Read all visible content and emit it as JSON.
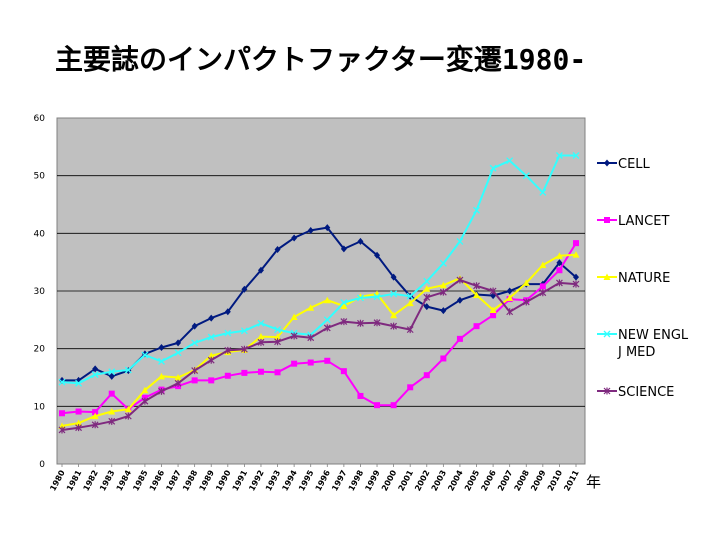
{
  "title_main": "主要誌のインパクトファクター変遷",
  "title_year": "1980-",
  "chart_data": {
    "type": "line",
    "title": "主要誌のインパクトファクター変遷1980-",
    "xlabel": "年",
    "ylabel": "",
    "ylim": [
      0,
      60
    ],
    "yticks": [
      "0",
      "10",
      "20",
      "30",
      "40",
      "50",
      "60"
    ],
    "grid": true,
    "legend": "right",
    "categories": [
      "1980",
      "1981",
      "1982",
      "1983",
      "1984",
      "1985",
      "1986",
      "1987",
      "1988",
      "1989",
      "1990",
      "1991",
      "1992",
      "1993",
      "1994",
      "1995",
      "1996",
      "1997",
      "1998",
      "1999",
      "2000",
      "2001",
      "2002",
      "2003",
      "2004",
      "2005",
      "2006",
      "2007",
      "2008",
      "2009",
      "2010",
      "2011"
    ],
    "series": [
      {
        "name": "CELL",
        "color": "#001a80",
        "marker": "diamond",
        "values": [
          14.5,
          14.5,
          16.5,
          15.2,
          16.2,
          19.1,
          20.2,
          21.0,
          23.9,
          25.3,
          26.4,
          30.3,
          33.6,
          37.2,
          39.2,
          40.5,
          41.0,
          37.3,
          38.6,
          36.2,
          32.4,
          29.1,
          27.3,
          26.6,
          28.4,
          29.4,
          29.2,
          30.0,
          31.2,
          31.2,
          34.9,
          32.4
        ]
      },
      {
        "name": "LANCET",
        "color": "#ff00ff",
        "marker": "square",
        "values": [
          8.8,
          9.1,
          9.0,
          12.2,
          9.5,
          11.5,
          12.9,
          13.5,
          14.5,
          14.5,
          15.3,
          15.8,
          16.0,
          15.9,
          17.4,
          17.6,
          17.9,
          16.1,
          11.8,
          10.2,
          10.2,
          13.3,
          15.4,
          18.3,
          21.7,
          23.9,
          25.8,
          28.6,
          28.4,
          30.8,
          33.6,
          38.3
        ]
      },
      {
        "name": "NATURE",
        "color": "#ffff00",
        "marker": "triangle",
        "values": [
          6.6,
          7.1,
          8.3,
          9.1,
          9.5,
          12.8,
          15.2,
          15.0,
          16.3,
          18.8,
          19.4,
          19.8,
          22.1,
          22.0,
          25.5,
          27.1,
          28.4,
          27.4,
          29.0,
          29.5,
          25.8,
          27.9,
          30.4,
          31.0,
          32.2,
          29.3,
          26.7,
          28.8,
          31.4,
          34.5,
          36.1,
          36.3
        ]
      },
      {
        "name": "NEW ENGL J MED",
        "color": "#33ffff",
        "marker": "x",
        "values": [
          14.2,
          14.0,
          15.5,
          16.0,
          16.3,
          18.9,
          17.8,
          19.3,
          21.0,
          22.0,
          22.7,
          23.1,
          24.4,
          23.3,
          22.7,
          22.4,
          25.0,
          28.0,
          28.8,
          29.0,
          29.5,
          29.1,
          31.7,
          34.8,
          38.6,
          44.0,
          51.3,
          52.6,
          50.0,
          47.1,
          53.5,
          53.5
        ]
      },
      {
        "name": "SCIENCE",
        "color": "#7f2a7f",
        "marker": "star",
        "values": [
          5.9,
          6.3,
          6.8,
          7.4,
          8.3,
          10.9,
          12.6,
          14.0,
          16.2,
          18.0,
          19.7,
          19.9,
          21.1,
          21.2,
          22.2,
          21.9,
          23.6,
          24.7,
          24.4,
          24.5,
          23.9,
          23.3,
          28.9,
          29.8,
          31.9,
          30.9,
          30.0,
          26.4,
          28.1,
          29.7,
          31.4,
          31.2
        ]
      }
    ]
  }
}
